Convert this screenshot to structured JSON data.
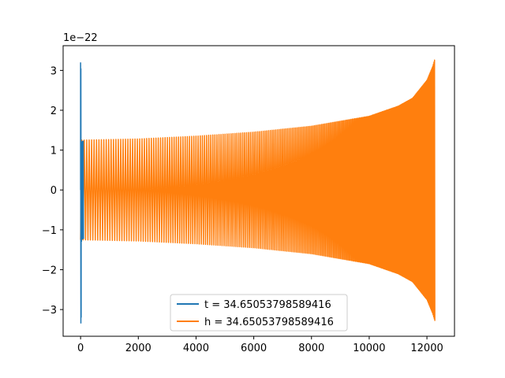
{
  "chart_data": {
    "type": "line",
    "title": "",
    "xlabel": "",
    "ylabel": "",
    "y_offset_text": "1e−22",
    "xlim": [
      -605,
      12955
    ],
    "ylim": [
      -3.67,
      3.62
    ],
    "x_ticks": [
      0,
      2000,
      4000,
      6000,
      8000,
      10000,
      12000
    ],
    "x_tick_labels": [
      "0",
      "2000",
      "4000",
      "6000",
      "8000",
      "10000",
      "12000"
    ],
    "y_ticks": [
      3,
      2,
      1,
      0,
      -1,
      -2,
      -3
    ],
    "y_tick_labels": [
      "3",
      "2",
      "1",
      "0",
      "−1",
      "−2",
      "−3"
    ],
    "grid": false,
    "legend_position": "lower center",
    "series": [
      {
        "name": "t = 34.65053798589416",
        "color": "#1f77b4",
        "description": "spike near x=0",
        "x": [
          0,
          0,
          10,
          10,
          20,
          20,
          30,
          30,
          40,
          50,
          60,
          70,
          80,
          90,
          100
        ],
        "y": [
          0,
          3.2,
          -3.35,
          3.05,
          -3.2,
          1.0,
          -1.3,
          1.2,
          -1.25,
          1.22,
          -1.24,
          1.23,
          -1.22,
          1.24,
          -1.23
        ]
      },
      {
        "name": "h = 34.65053798589416",
        "color": "#ff7f0e",
        "description": "chirp oscillation with growing amplitude",
        "envelope_x": [
          0,
          2000,
          4000,
          6000,
          8000,
          10000,
          11000,
          11500,
          12000,
          12200,
          12280
        ],
        "envelope_y": [
          1.25,
          1.28,
          1.35,
          1.45,
          1.6,
          1.85,
          2.1,
          2.3,
          2.75,
          3.1,
          3.3
        ],
        "cycles_start_period": 85,
        "cycles_end_period": 20,
        "x_end": 12280
      }
    ]
  }
}
